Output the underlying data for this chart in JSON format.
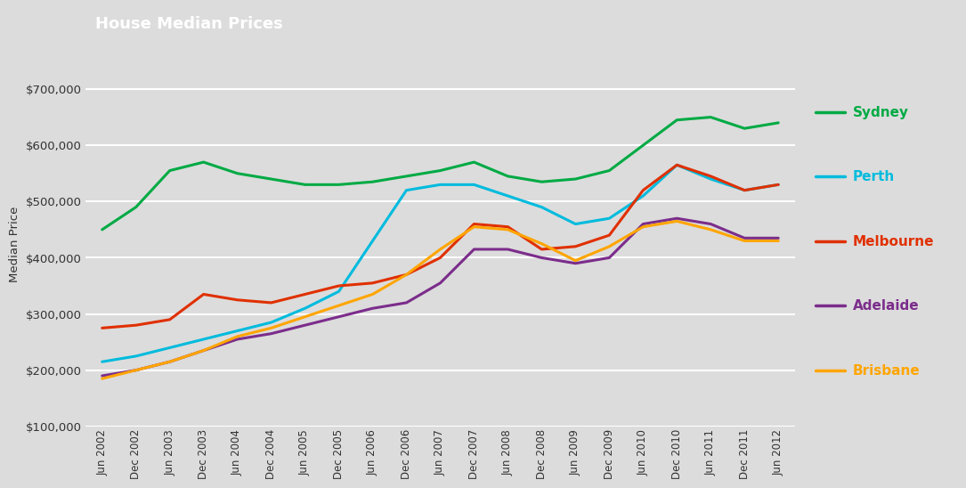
{
  "title": "House Median Prices",
  "title_bg_color": "#D94F1E",
  "title_text_color": "#ffffff",
  "ylabel": "Median Price",
  "background_color": "#DCDCDC",
  "plot_bg_color": "#DCDCDC",
  "grid_color": "#ffffff",
  "tick_labels": [
    "Jun 2002",
    "Dec 2002",
    "Jun 2003",
    "Dec 2003",
    "Jun 2004",
    "Dec 2004",
    "Jun 2005",
    "Dec 2005",
    "Jun 2006",
    "Dec 2006",
    "Jun 2007",
    "Dec 2007",
    "Jun 2008",
    "Dec 2008",
    "Jun 2009",
    "Dec 2009",
    "Jun 2010",
    "Dec 2010",
    "Jun 2011",
    "Dec 2011",
    "Jun 2012"
  ],
  "series": {
    "Sydney": {
      "color": "#00AA44",
      "values": [
        450000,
        490000,
        555000,
        570000,
        550000,
        540000,
        530000,
        530000,
        535000,
        545000,
        555000,
        570000,
        545000,
        535000,
        540000,
        555000,
        600000,
        645000,
        650000,
        630000,
        640000
      ]
    },
    "Perth": {
      "color": "#00BBDD",
      "values": [
        215000,
        225000,
        240000,
        255000,
        270000,
        285000,
        310000,
        340000,
        430000,
        520000,
        530000,
        530000,
        510000,
        490000,
        460000,
        470000,
        510000,
        565000,
        540000,
        520000,
        530000
      ]
    },
    "Melbourne": {
      "color": "#E03000",
      "values": [
        275000,
        280000,
        290000,
        335000,
        325000,
        320000,
        335000,
        350000,
        355000,
        370000,
        400000,
        460000,
        455000,
        415000,
        420000,
        440000,
        520000,
        565000,
        545000,
        520000,
        530000
      ]
    },
    "Adelaide": {
      "color": "#7B2D8B",
      "values": [
        190000,
        200000,
        215000,
        235000,
        255000,
        265000,
        280000,
        295000,
        310000,
        320000,
        355000,
        415000,
        415000,
        400000,
        390000,
        400000,
        460000,
        470000,
        460000,
        435000,
        435000
      ]
    },
    "Brisbane": {
      "color": "#FFA500",
      "values": [
        185000,
        200000,
        215000,
        235000,
        260000,
        275000,
        295000,
        315000,
        335000,
        370000,
        415000,
        455000,
        450000,
        425000,
        395000,
        420000,
        455000,
        465000,
        450000,
        430000,
        430000
      ]
    }
  },
  "ylim": [
    100000,
    750000
  ],
  "yticks": [
    100000,
    200000,
    300000,
    400000,
    500000,
    600000,
    700000
  ],
  "legend_order": [
    "Sydney",
    "Perth",
    "Melbourne",
    "Adelaide",
    "Brisbane"
  ],
  "legend_colors": {
    "Sydney": "#00AA44",
    "Perth": "#00BBDD",
    "Melbourne": "#E03000",
    "Adelaide": "#7B2D8B",
    "Brisbane": "#FFA500"
  },
  "legend_bg_color": "#E8E8E8"
}
